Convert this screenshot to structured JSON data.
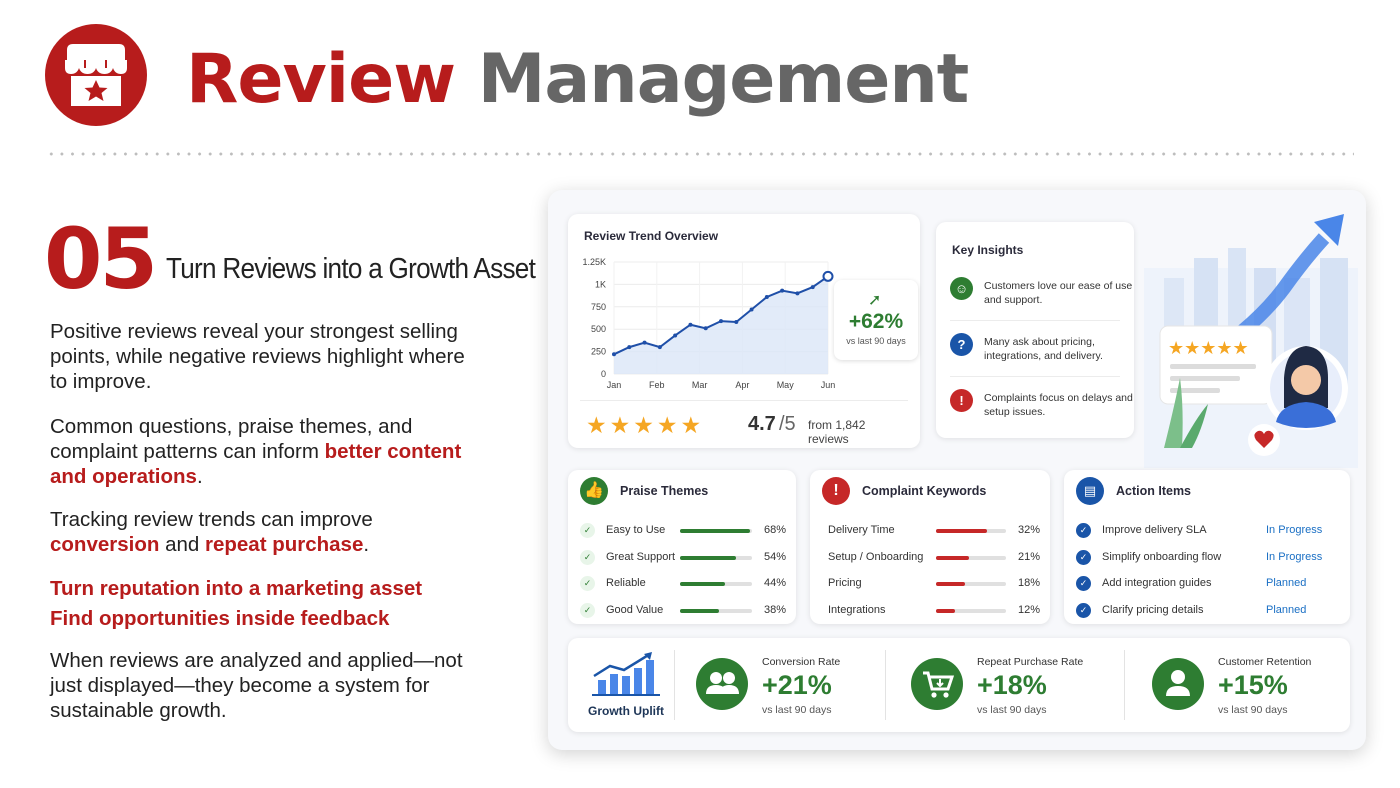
{
  "header": {
    "title_part1": "Review",
    "title_part2": "Management",
    "logo_icon": "storefront-star-icon"
  },
  "section": {
    "number": "05",
    "heading": "Turn Reviews into a Growth Asset"
  },
  "paragraphs": {
    "p1": "Positive reviews reveal your strongest selling points, while negative reviews highlight where to improve.",
    "p2_a": "Common questions, praise themes, and complaint patterns can inform ",
    "p2_hl": "better content and operations",
    "p2_b": ".",
    "p3_a": "Tracking review trends can improve ",
    "p3_hl1": "conversion",
    "p3_mid": " and ",
    "p3_hl2": "repeat purchase",
    "p3_b": ".",
    "p4_line1": "Turn reputation into a marketing asset",
    "p4_line2": "Find opportunities inside feedback",
    "p5": "When reviews are analyzed and applied—not just displayed—they become a system for sustainable growth."
  },
  "colors": {
    "brand_red": "#b71c1c",
    "grey_title": "#666666",
    "positive_green": "#2e7d32",
    "line_blue": "#1f4fa8",
    "status_blue": "#1a6fc4",
    "star_gold": "#f5a623"
  },
  "trend_card": {
    "title": "Review Trend Overview",
    "uplift_value": "+62%",
    "uplift_sub": "vs last 90 days",
    "rating_value": "4.7",
    "rating_denominator": "/5",
    "rating_source": "from 1,842 reviews",
    "stars": "★★★★★",
    "star_rating": 4.7
  },
  "chart_data": {
    "type": "line",
    "title": "Review Trend Overview",
    "xlabel": "",
    "ylabel": "",
    "x_ticks": [
      "Jan",
      "Feb",
      "Mar",
      "Apr",
      "May",
      "Jun"
    ],
    "y_ticks": [
      "0",
      "250",
      "500",
      "750",
      "1K",
      "1.25K"
    ],
    "ylim": [
      0,
      1250
    ],
    "grid": true,
    "series": [
      {
        "values": [
          {
            "x": "Jan",
            "y": 220
          },
          {
            "x": "Jan-mid",
            "y": 300
          },
          {
            "x": "Feb",
            "y": 350
          },
          {
            "x": "Feb-mid",
            "y": 300
          },
          {
            "x": "Mar",
            "y": 430
          },
          {
            "x": "Mar-mid",
            "y": 550
          },
          {
            "x": "Apr-early",
            "y": 510
          },
          {
            "x": "Apr-mid",
            "y": 590
          },
          {
            "x": "Apr",
            "y": 580
          },
          {
            "x": "Apr-late",
            "y": 720
          },
          {
            "x": "May-early",
            "y": 860
          },
          {
            "x": "May",
            "y": 930
          },
          {
            "x": "May-mid",
            "y": 900
          },
          {
            "x": "May-late",
            "y": 970
          },
          {
            "x": "Jun",
            "y": 1090
          }
        ]
      }
    ]
  },
  "insights": {
    "title": "Key Insights",
    "items": [
      {
        "icon": "smile-icon",
        "text": "Customers love our ease of use and support.",
        "color": "#2e7d32"
      },
      {
        "icon": "question-icon",
        "text": "Many ask about pricing, integrations, and delivery.",
        "color": "#1a55a8"
      },
      {
        "icon": "warning-icon",
        "text": "Complaints focus on delays and setup issues.",
        "color": "#c62828"
      }
    ]
  },
  "praise": {
    "title": "Praise Themes",
    "rows": [
      {
        "label": "Easy to Use",
        "pct": "68%",
        "value": 0.68
      },
      {
        "label": "Great Support",
        "pct": "54%",
        "value": 0.54
      },
      {
        "label": "Reliable",
        "pct": "44%",
        "value": 0.44
      },
      {
        "label": "Good Value",
        "pct": "38%",
        "value": 0.38
      }
    ]
  },
  "complaints": {
    "title": "Complaint Keywords",
    "rows": [
      {
        "label": "Delivery Time",
        "pct": "32%",
        "value": 0.32
      },
      {
        "label": "Setup / Onboarding",
        "pct": "21%",
        "value": 0.21
      },
      {
        "label": "Pricing",
        "pct": "18%",
        "value": 0.18
      },
      {
        "label": "Integrations",
        "pct": "12%",
        "value": 0.12
      }
    ]
  },
  "actions": {
    "title": "Action Items",
    "rows": [
      {
        "label": "Improve delivery SLA",
        "status": "In Progress"
      },
      {
        "label": "Simplify onboarding flow",
        "status": "In Progress"
      },
      {
        "label": "Add integration guides",
        "status": "Planned"
      },
      {
        "label": "Clarify pricing details",
        "status": "Planned"
      }
    ]
  },
  "kpis": {
    "uplift_label": "Growth Uplift",
    "items": [
      {
        "label": "Conversion Rate",
        "value": "+21%",
        "sub": "vs last 90 days",
        "icon": "users-icon"
      },
      {
        "label": "Repeat Purchase Rate",
        "value": "+18%",
        "sub": "vs last 90 days",
        "icon": "cart-icon"
      },
      {
        "label": "Customer Retention",
        "value": "+15%",
        "sub": "vs last 90 days",
        "icon": "user-icon"
      }
    ]
  }
}
